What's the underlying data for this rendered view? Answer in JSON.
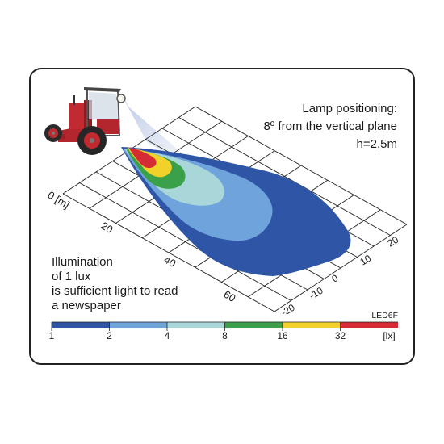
{
  "header": {
    "lines": [
      "Lamp positioning:",
      "8º from the vertical plane",
      "h=2,5m"
    ]
  },
  "note": {
    "lines": [
      "Illumination",
      "of 1 lux",
      "is sufficient light to read",
      "a newspaper"
    ]
  },
  "model": "LED6F",
  "distance_axis": {
    "unit_label": "0 [m]",
    "ticks": [
      "20",
      "40",
      "60"
    ]
  },
  "lateral_axis": {
    "ticks": [
      "20",
      "10",
      "0",
      "-10",
      "-20"
    ]
  },
  "legend": {
    "ticks": [
      "1",
      "2",
      "4",
      "8",
      "16",
      "32"
    ],
    "unit": "[lx]",
    "bands": [
      {
        "range": "1-2 lx",
        "color": "#2f56a6"
      },
      {
        "range": "2-4 lx",
        "color": "#6fa3dc"
      },
      {
        "range": "4-8 lx",
        "color": "#a9d6d8"
      },
      {
        "range": "8-16 lx",
        "color": "#3aa14a"
      },
      {
        "range": "16-32 lx",
        "color": "#f2d12a"
      },
      {
        "range": ">32 lx",
        "color": "#d42b35"
      }
    ]
  },
  "icons": {
    "vehicle": "tractor-icon"
  }
}
